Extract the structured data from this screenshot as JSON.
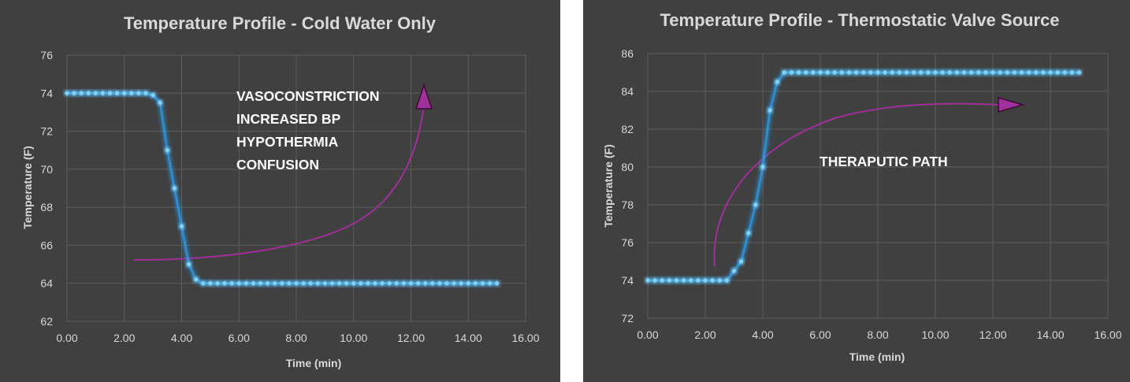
{
  "colors": {
    "background": "#404040",
    "series": "#4fb8e8",
    "series_glow": "#2fa8ff",
    "arrow": "#a0309a",
    "text": "#d9d9d9",
    "annotation_text": "#ffffff",
    "gridline": "#5e5e5e"
  },
  "chart_data": [
    {
      "type": "scatter",
      "title": "Temperature Profile - Cold Water Only",
      "xlabel": "Time (min)",
      "ylabel": "Temperature (F)",
      "xlim": [
        0,
        16
      ],
      "ylim": [
        62,
        76
      ],
      "xticks": [
        "0.00",
        "2.00",
        "4.00",
        "6.00",
        "8.00",
        "10.00",
        "12.00",
        "14.00",
        "16.00"
      ],
      "yticks": [
        "62",
        "64",
        "66",
        "68",
        "70",
        "72",
        "74",
        "76"
      ],
      "grid": true,
      "series": [
        {
          "x": [
            0.0,
            0.25,
            0.5,
            0.75,
            1.0,
            1.25,
            1.5,
            1.75,
            2.0,
            2.25,
            2.5,
            2.75,
            3.0,
            3.25,
            3.5,
            3.75,
            4.0,
            4.25,
            4.5,
            4.75,
            5.0,
            5.25,
            5.5,
            5.75,
            6.0,
            6.25,
            6.5,
            6.75,
            7.0,
            7.25,
            7.5,
            7.75,
            8.0,
            8.25,
            8.5,
            8.75,
            9.0,
            9.25,
            9.5,
            9.75,
            10.0,
            10.25,
            10.5,
            10.75,
            11.0,
            11.25,
            11.5,
            11.75,
            12.0,
            12.25,
            12.5,
            12.75,
            13.0,
            13.25,
            13.5,
            13.75,
            14.0,
            14.25,
            14.5,
            14.75,
            15.0
          ],
          "y": [
            74,
            74,
            74,
            74,
            74,
            74,
            74,
            74,
            74,
            74,
            74,
            74,
            73.9,
            73.5,
            71,
            69,
            67,
            65,
            64.2,
            64,
            64,
            64,
            64,
            64,
            64,
            64,
            64,
            64,
            64,
            64,
            64,
            64,
            64,
            64,
            64,
            64,
            64,
            64,
            64,
            64,
            64,
            64,
            64,
            64,
            64,
            64,
            64,
            64,
            64,
            64,
            64,
            64,
            64,
            64,
            64,
            64,
            64,
            64,
            64,
            64,
            64
          ]
        }
      ],
      "annotation": [
        "VASOCONSTRICTION",
        "INCREASED BP",
        "HYPOTHERMIA",
        "CONFUSION"
      ]
    },
    {
      "type": "scatter",
      "title": "Temperature Profile - Thermostatic Valve Source",
      "xlabel": "Time (min)",
      "ylabel": "Temperature (F)",
      "xlim": [
        0,
        16
      ],
      "ylim": [
        72,
        86
      ],
      "xticks": [
        "0.00",
        "2.00",
        "4.00",
        "6.00",
        "8.00",
        "10.00",
        "12.00",
        "14.00",
        "16.00"
      ],
      "yticks": [
        "72",
        "74",
        "76",
        "78",
        "80",
        "82",
        "84",
        "86"
      ],
      "grid": true,
      "series": [
        {
          "x": [
            0.0,
            0.25,
            0.5,
            0.75,
            1.0,
            1.25,
            1.5,
            1.75,
            2.0,
            2.25,
            2.5,
            2.75,
            3.0,
            3.25,
            3.5,
            3.75,
            4.0,
            4.25,
            4.5,
            4.75,
            5.0,
            5.25,
            5.5,
            5.75,
            6.0,
            6.25,
            6.5,
            6.75,
            7.0,
            7.25,
            7.5,
            7.75,
            8.0,
            8.25,
            8.5,
            8.75,
            9.0,
            9.25,
            9.5,
            9.75,
            10.0,
            10.25,
            10.5,
            10.75,
            11.0,
            11.25,
            11.5,
            11.75,
            12.0,
            12.25,
            12.5,
            12.75,
            13.0,
            13.25,
            13.5,
            13.75,
            14.0,
            14.25,
            14.5,
            14.75,
            15.0
          ],
          "y": [
            74,
            74,
            74,
            74,
            74,
            74,
            74,
            74,
            74,
            74,
            74,
            74,
            74.5,
            75,
            76.5,
            78,
            80,
            83,
            84.5,
            85,
            85,
            85,
            85,
            85,
            85,
            85,
            85,
            85,
            85,
            85,
            85,
            85,
            85,
            85,
            85,
            85,
            85,
            85,
            85,
            85,
            85,
            85,
            85,
            85,
            85,
            85,
            85,
            85,
            85,
            85,
            85,
            85,
            85,
            85,
            85,
            85,
            85,
            85,
            85,
            85,
            85
          ]
        }
      ],
      "annotation": [
        "THERAPUTIC PATH"
      ]
    }
  ]
}
